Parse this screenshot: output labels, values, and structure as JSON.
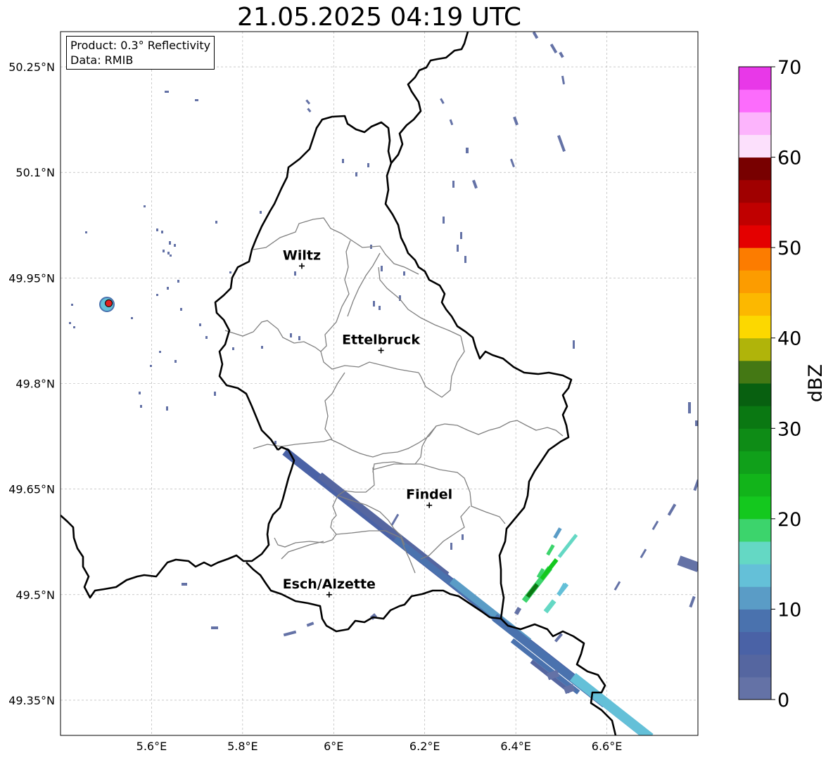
{
  "title": "21.05.2025 04:19 UTC",
  "info": {
    "product": "Product: 0.3° Reflectivity",
    "data": "Data: RMIB"
  },
  "map": {
    "lon_range": [
      5.4,
      6.8
    ],
    "lat_range": [
      49.3,
      50.3
    ],
    "lon_ticks": [
      {
        "value": 5.6,
        "label": "5.6°E"
      },
      {
        "value": 5.8,
        "label": "5.8°E"
      },
      {
        "value": 6.0,
        "label": "6°E"
      },
      {
        "value": 6.2,
        "label": "6.2°E"
      },
      {
        "value": 6.4,
        "label": "6.4°E"
      },
      {
        "value": 6.6,
        "label": "6.6°E"
      }
    ],
    "lat_ticks": [
      {
        "value": 49.35,
        "label": "49.35°N"
      },
      {
        "value": 49.5,
        "label": "49.5°N"
      },
      {
        "value": 49.65,
        "label": "49.65°N"
      },
      {
        "value": 49.8,
        "label": "49.8°N"
      },
      {
        "value": 49.95,
        "label": "49.95°N"
      },
      {
        "value": 50.1,
        "label": "50.1°N"
      },
      {
        "value": 50.25,
        "label": "50.25°N"
      }
    ],
    "grid": true,
    "cities": [
      {
        "name": "Wiltz",
        "lon": 5.93,
        "lat": 49.967
      },
      {
        "name": "Ettelbruck",
        "lon": 6.104,
        "lat": 49.847
      },
      {
        "name": "Findel",
        "lon": 6.21,
        "lat": 49.627
      },
      {
        "name": "Esch/Alzette",
        "lon": 5.99,
        "lat": 49.5
      }
    ],
    "radar_site": {
      "lon": 5.506,
      "lat": 49.914
    }
  },
  "colorbar": {
    "label": "dBZ",
    "min": 0,
    "max": 70,
    "ticks": [
      {
        "value": 0,
        "label": "0"
      },
      {
        "value": 10,
        "label": "10"
      },
      {
        "value": 20,
        "label": "20"
      },
      {
        "value": 30,
        "label": "30"
      },
      {
        "value": 40,
        "label": "40"
      },
      {
        "value": 50,
        "label": "50"
      },
      {
        "value": 60,
        "label": "60"
      },
      {
        "value": 70,
        "label": "70"
      }
    ],
    "colors": [
      "#6472a6",
      "#5566a0",
      "#4a62a6",
      "#4a72ae",
      "#5a9cc6",
      "#64c0d8",
      "#64d8c4",
      "#3cd46c",
      "#14c81e",
      "#12b41a",
      "#10a01a",
      "#0e8c16",
      "#0a7812",
      "#086010",
      "#447814",
      "#b0b40a",
      "#fcd800",
      "#fcb800",
      "#fc9c00",
      "#fc7c00",
      "#e40000",
      "#c00000",
      "#a00000",
      "#780000",
      "#fce0fc",
      "#fcb4fc",
      "#fc6cfc",
      "#e838e8"
    ]
  }
}
